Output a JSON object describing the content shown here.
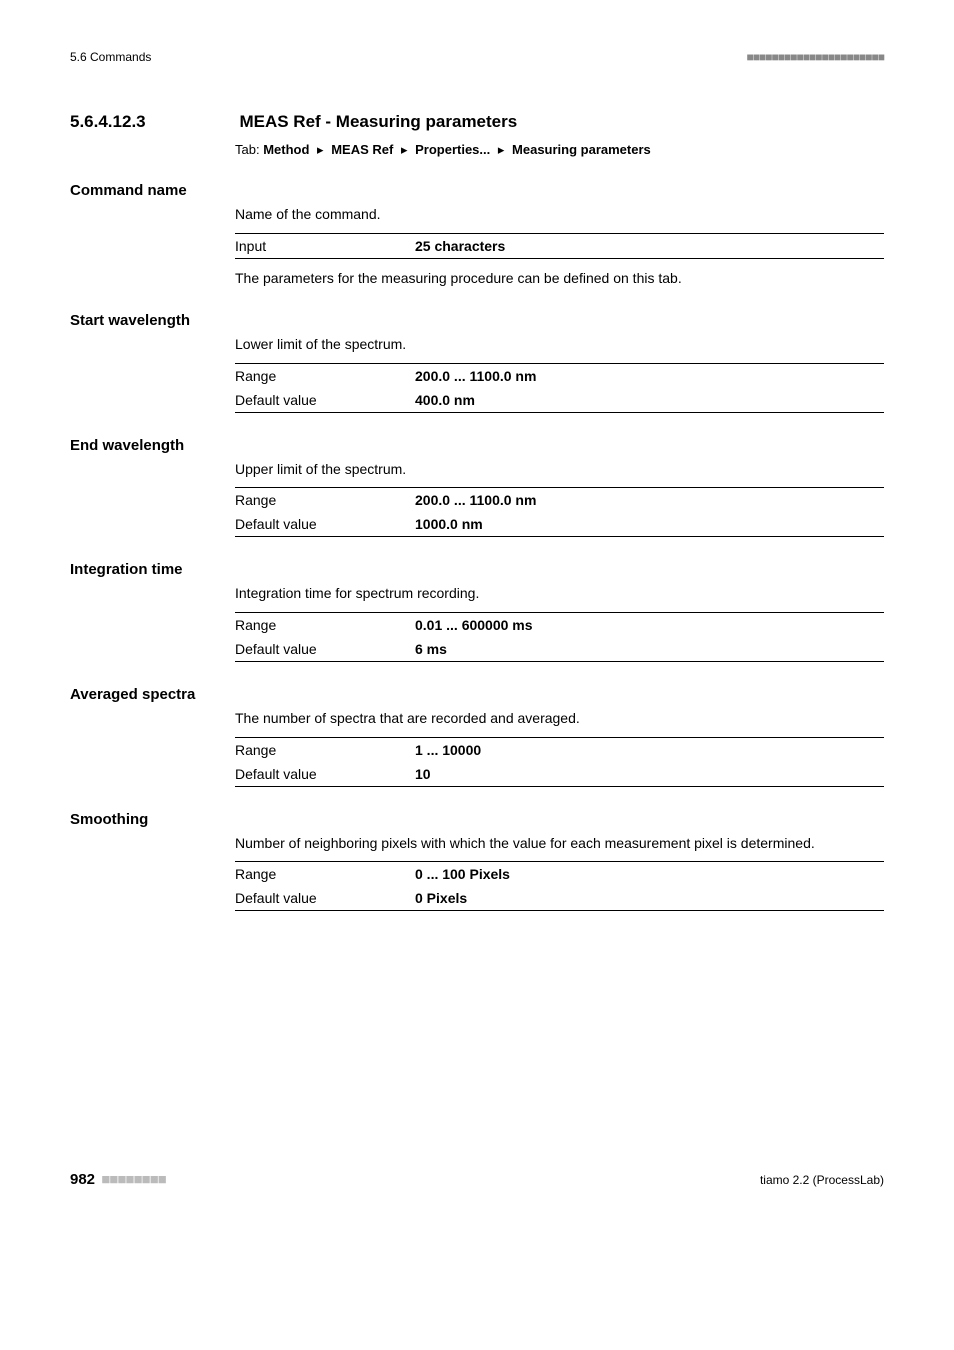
{
  "header": {
    "left": "5.6 Commands",
    "bars": "■■■■■■■■■■■■■■■■■■■■■■"
  },
  "section": {
    "number": "5.6.4.12.3",
    "title": "MEAS Ref - Measuring parameters",
    "tab_prefix": "Tab:",
    "tab_path": [
      "Method",
      "MEAS Ref",
      "Properties...",
      "Measuring parameters"
    ],
    "tab_separator": "▸"
  },
  "params": [
    {
      "name": "Command name",
      "desc": "Name of the command.",
      "rows": [
        {
          "label": "Input",
          "value": "25 characters"
        }
      ],
      "note": "The parameters for the measuring procedure can be defined on this tab."
    },
    {
      "name": "Start wavelength",
      "desc": "Lower limit of the spectrum.",
      "rows": [
        {
          "label": "Range",
          "value": "200.0 ... 1100.0 nm"
        },
        {
          "label": "Default value",
          "value": "400.0 nm"
        }
      ]
    },
    {
      "name": "End wavelength",
      "desc": "Upper limit of the spectrum.",
      "rows": [
        {
          "label": "Range",
          "value": "200.0 ... 1100.0 nm"
        },
        {
          "label": "Default value",
          "value": "1000.0 nm"
        }
      ]
    },
    {
      "name": "Integration time",
      "desc": "Integration time for spectrum recording.",
      "rows": [
        {
          "label": "Range",
          "value": "0.01 ... 600000 ms"
        },
        {
          "label": "Default value",
          "value": "6 ms"
        }
      ]
    },
    {
      "name": "Averaged spectra",
      "desc": "The number of spectra that are recorded and averaged.",
      "rows": [
        {
          "label": "Range",
          "value": "1 ... 10000"
        },
        {
          "label": "Default value",
          "value": "10"
        }
      ]
    },
    {
      "name": "Smoothing",
      "desc": "Number of neighboring pixels with which the value for each measurement pixel is determined.",
      "rows": [
        {
          "label": "Range",
          "value": "0 ... 100 Pixels"
        },
        {
          "label": "Default value",
          "value": "0 Pixels"
        }
      ]
    }
  ],
  "footer": {
    "page": "982",
    "bars": "■■■■■■■■",
    "right": "tiamo 2.2 (ProcessLab)"
  }
}
